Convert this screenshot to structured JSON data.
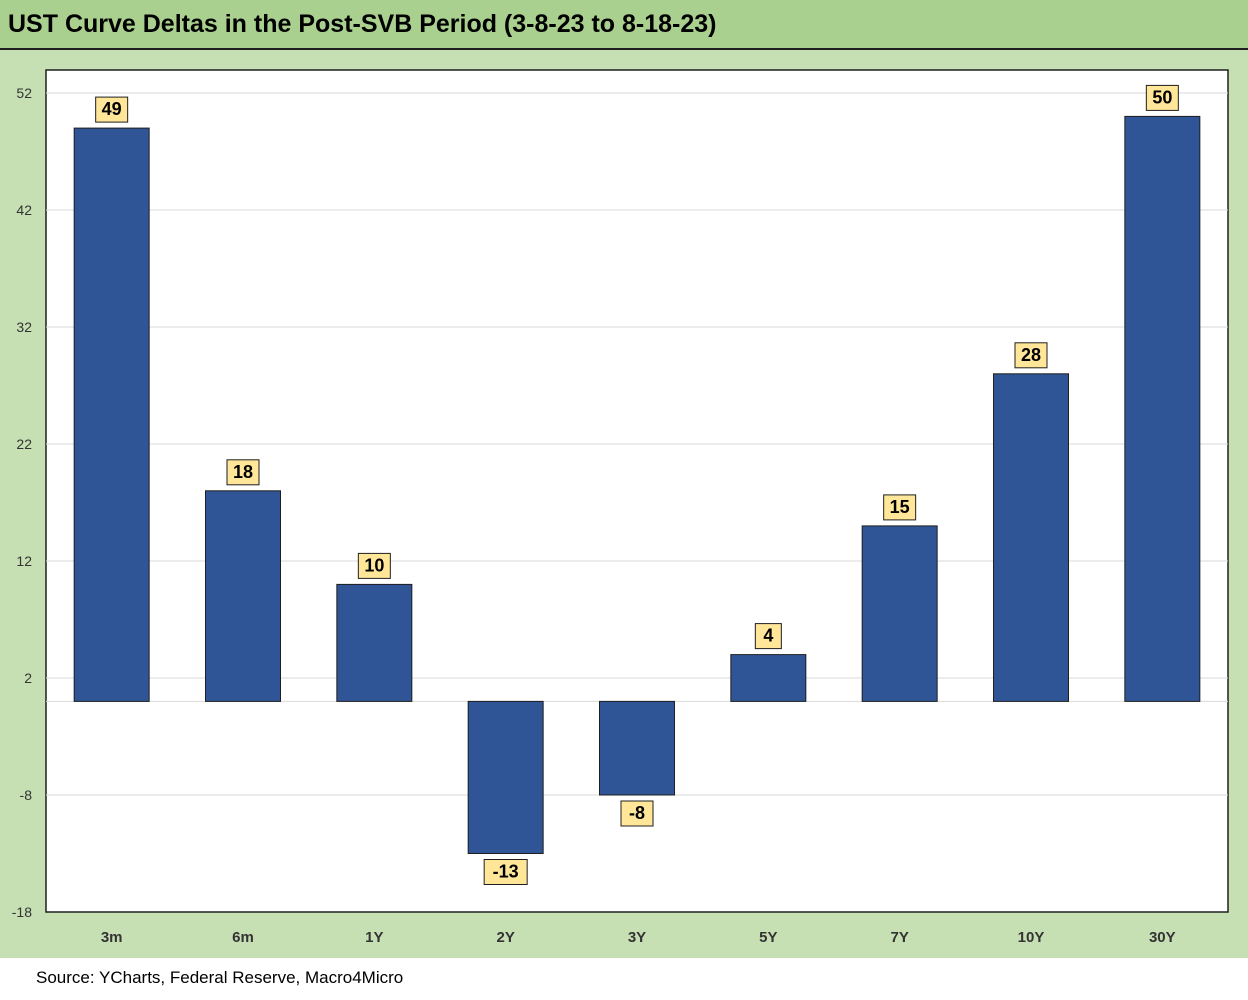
{
  "title": "UST Curve Deltas in the Post-SVB Period (3-8-23 to 8-18-23)",
  "source": "Source: YCharts, Federal Reserve, Macro4Micro",
  "colors": {
    "title_bg": "#a9d08e",
    "frame_bg": "#c6e0b4",
    "bar": "#2f5597",
    "label_bg": "#ffe699"
  },
  "chart_data": {
    "type": "bar",
    "title": "UST Curve Deltas in the Post-SVB Period (3-8-23 to 8-18-23)",
    "categories": [
      "3m",
      "6m",
      "1Y",
      "2Y",
      "3Y",
      "5Y",
      "7Y",
      "10Y",
      "30Y"
    ],
    "values": [
      49,
      18,
      10,
      -13,
      -8,
      4,
      15,
      28,
      50
    ],
    "ylim": [
      -18,
      52
    ],
    "yticks": [
      52,
      42,
      32,
      22,
      12,
      2,
      -8,
      -18
    ],
    "grid": true,
    "xlabel": "",
    "ylabel": "",
    "data_labels": true,
    "legend": "none"
  }
}
